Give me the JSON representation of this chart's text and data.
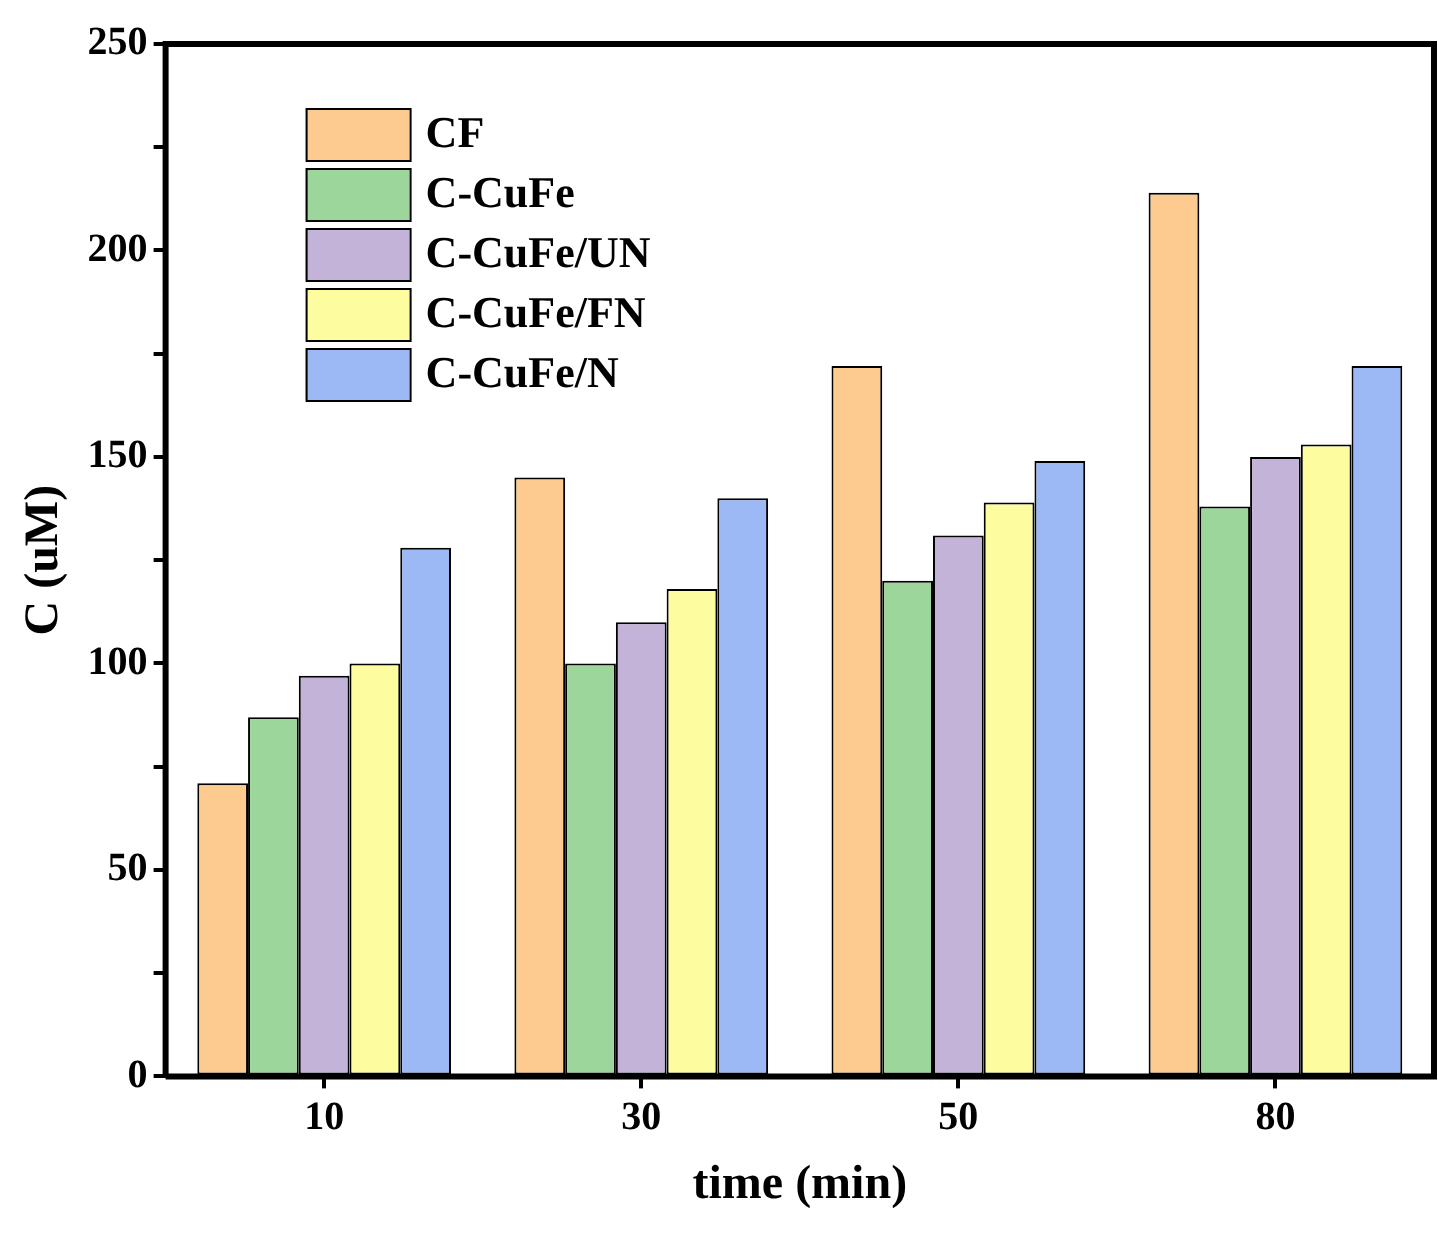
{
  "chart_data": {
    "type": "bar",
    "xlabel": "time (min)",
    "ylabel": "C (uM)",
    "categories": [
      "10",
      "30",
      "50",
      "80"
    ],
    "series": [
      {
        "name": "CF",
        "color": "#fdca8f",
        "values": [
          71,
          145,
          172,
          214
        ]
      },
      {
        "name": "C-CuFe",
        "color": "#9dd69b",
        "values": [
          87,
          100,
          120,
          138
        ]
      },
      {
        "name": "C-CuFe/UN",
        "color": "#c4b3d8",
        "values": [
          97,
          110,
          131,
          150
        ]
      },
      {
        "name": "C-CuFe/FN",
        "color": "#fdfc9f",
        "values": [
          100,
          118,
          139,
          153
        ]
      },
      {
        "name": "C-CuFe/N",
        "color": "#9cb8f5",
        "values": [
          128,
          140,
          149,
          172
        ]
      }
    ],
    "ylim": [
      0,
      250
    ],
    "yticks": [
      0,
      {
        "value": 25,
        "label": null
      },
      50,
      {
        "value": 75,
        "label": null
      },
      100,
      {
        "value": 125,
        "label": null
      },
      150,
      {
        "value": 175,
        "label": null
      },
      200,
      {
        "value": 225,
        "label": null
      },
      250
    ],
    "grid": false,
    "legend": "top left"
  }
}
